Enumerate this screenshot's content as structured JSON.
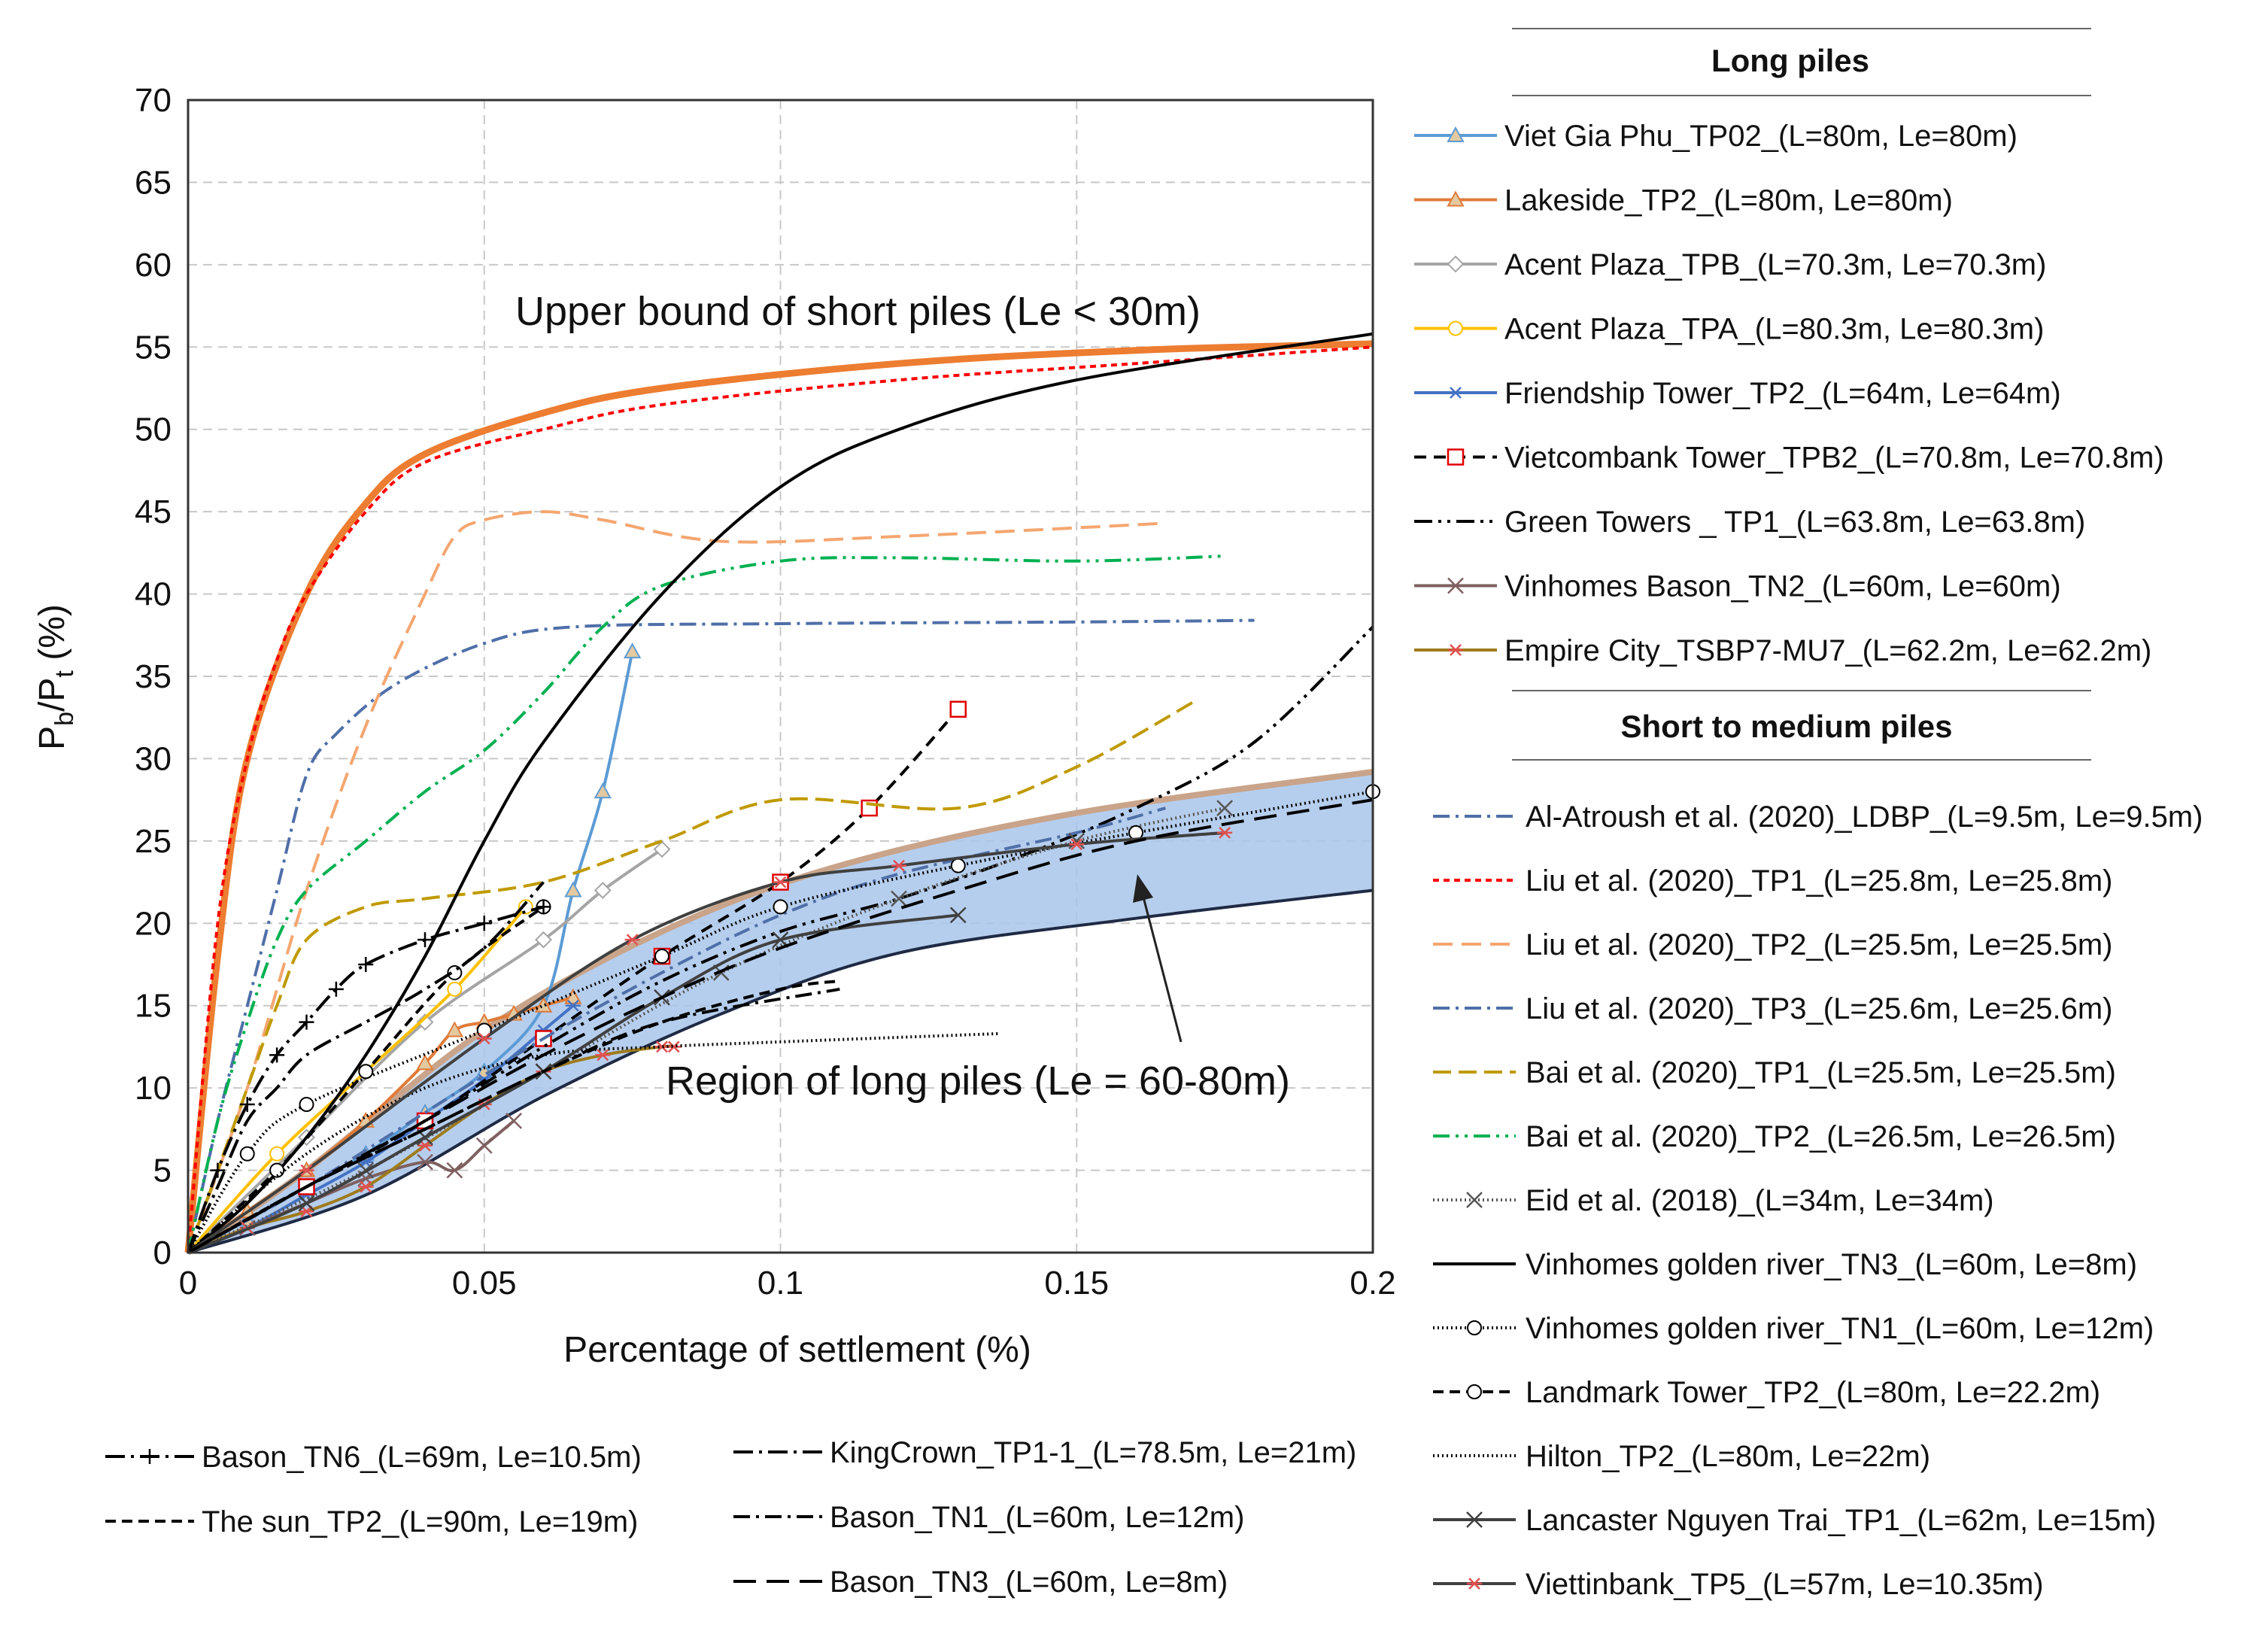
{
  "chart_data": {
    "type": "line",
    "title": "",
    "xlabel": "Percentage of settlement (%)",
    "ylabel_main": "P",
    "ylabel_sub1": "b",
    "ylabel_mid": "/P",
    "ylabel_sub2": "t",
    "ylabel_tail": " (%)",
    "xlim": [
      0,
      0.2
    ],
    "ylim": [
      0,
      70
    ],
    "xticks": [
      "0",
      "0.05",
      "0.1",
      "0.15",
      "0.2"
    ],
    "yticks": [
      "0",
      "5",
      "10",
      "15",
      "20",
      "25",
      "30",
      "35",
      "40",
      "45",
      "50",
      "55",
      "60",
      "65",
      "70"
    ],
    "grid": true,
    "annotations": [
      {
        "text": "Upper bound of short piles (Le < 30m)"
      },
      {
        "text": "Region of long piles (Le = 60-80m)"
      }
    ],
    "region": {
      "name": "Region of long piles",
      "upper": [
        [
          0,
          0
        ],
        [
          0.02,
          5
        ],
        [
          0.05,
          13.5
        ],
        [
          0.08,
          19.5
        ],
        [
          0.11,
          23.5
        ],
        [
          0.15,
          26.7
        ],
        [
          0.2,
          29.2
        ]
      ],
      "lower": [
        [
          0,
          0
        ],
        [
          0.03,
          3.5
        ],
        [
          0.06,
          9.5
        ],
        [
          0.09,
          14.5
        ],
        [
          0.12,
          18.2
        ],
        [
          0.16,
          20.3
        ],
        [
          0.2,
          22
        ]
      ]
    },
    "legend_headings": {
      "long": "Long piles",
      "short": "Short to medium piles"
    },
    "series": [
      {
        "name": "Viet Gia Phu_TP02_(L=80m, Le=80m)",
        "group": "long",
        "color": "#5b9bd5",
        "dash": "",
        "marker": "triangle",
        "x": [
          0,
          0.01,
          0.02,
          0.03,
          0.04,
          0.05,
          0.06,
          0.065,
          0.07,
          0.075
        ],
        "y": [
          0,
          2,
          4,
          6,
          8.5,
          11,
          15,
          22,
          28,
          36.5
        ]
      },
      {
        "name": "Lakeside_TP2_(L=80m, Le=80m)",
        "group": "long",
        "color": "#e07b39",
        "dash": "",
        "marker": "triangle",
        "x": [
          0,
          0.01,
          0.02,
          0.03,
          0.04,
          0.045,
          0.05,
          0.055,
          0.06,
          0.065
        ],
        "y": [
          0,
          2.5,
          5,
          8,
          11.5,
          13.5,
          14,
          14.5,
          15,
          15.5
        ]
      },
      {
        "name": "Acent Plaza_TPB_(L=70.3m, Le=70.3m)",
        "group": "long",
        "color": "#a5a5a5",
        "dash": "",
        "marker": "diamond",
        "x": [
          0,
          0.02,
          0.04,
          0.06,
          0.07,
          0.08
        ],
        "y": [
          0,
          7,
          14,
          19,
          22,
          24.5
        ]
      },
      {
        "name": "Acent Plaza_TPA_(L=80.3m, Le=80.3m)",
        "group": "long",
        "color": "#ffc000",
        "dash": "",
        "marker": "circle",
        "x": [
          0,
          0.015,
          0.03,
          0.045,
          0.057
        ],
        "y": [
          0,
          6,
          11,
          16,
          21
        ]
      },
      {
        "name": "Friendship Tower_TP2_(L=64m, Le=64m)",
        "group": "long",
        "color": "#4472c4",
        "dash": "",
        "marker": "star",
        "x": [
          0,
          0.01,
          0.02,
          0.03,
          0.04,
          0.05,
          0.06,
          0.065
        ],
        "y": [
          0,
          1.5,
          3.5,
          5.5,
          8,
          10.5,
          13.5,
          15
        ]
      },
      {
        "name": "Vietcombank Tower_TPB2_(L=70.8m, Le=70.8m)",
        "group": "long",
        "color": "#000000",
        "dash": "16,10",
        "marker": "square-red",
        "x": [
          0,
          0.02,
          0.04,
          0.06,
          0.08,
          0.1,
          0.115,
          0.13
        ],
        "y": [
          0,
          4,
          8,
          13,
          18,
          22.5,
          27,
          33
        ]
      },
      {
        "name": "Green Towers _ TP1_(L=63.8m, Le=63.8m)",
        "group": "long",
        "color": "#000000",
        "dash": "24,8,4,8,4,8",
        "marker": "",
        "x": [
          0,
          0.02,
          0.04,
          0.06,
          0.08,
          0.1,
          0.12,
          0.14,
          0.16,
          0.18,
          0.2
        ],
        "y": [
          0,
          4,
          8,
          12.5,
          16.5,
          19.5,
          21.5,
          24,
          27,
          31,
          38
        ]
      },
      {
        "name": "Vinhomes Bason_TN2_(L=60m, Le=60m)",
        "group": "long",
        "color": "#7f6060",
        "dash": "",
        "marker": "x",
        "x": [
          0,
          0.01,
          0.02,
          0.03,
          0.04,
          0.045,
          0.05,
          0.055
        ],
        "y": [
          0,
          1.5,
          3,
          4.5,
          5.5,
          5,
          6.5,
          8
        ]
      },
      {
        "name": "Empire City_TSBP7-MU7_(L=62.2m, Le=62.2m)",
        "group": "long",
        "color": "#9e7b1c",
        "dash": "",
        "marker": "asterisk",
        "x": [
          0,
          0.01,
          0.02,
          0.03,
          0.04,
          0.05,
          0.06,
          0.07,
          0.08,
          0.082
        ],
        "y": [
          0,
          1.5,
          2.5,
          4,
          6.5,
          9,
          11,
          12,
          12.5,
          12.5
        ]
      },
      {
        "name": "Al-Atroush et al. (2020)_LDBP_(L=9.5m, Le=9.5m)",
        "group": "short",
        "color": "#4f6fa8",
        "dash": "22,8,4,8",
        "marker": "",
        "x": [
          0,
          0.005,
          0.01,
          0.015,
          0.02,
          0.025,
          0.035,
          0.05,
          0.065,
          0.1,
          0.15,
          0.18
        ],
        "y": [
          0,
          8,
          15,
          22,
          29,
          31.5,
          34.5,
          37,
          38,
          38.2,
          38.3,
          38.4
        ]
      },
      {
        "name": "Liu et al. (2020)_TP1_(L=25.8m, Le=25.8m)",
        "group": "short",
        "color": "#ff0000",
        "dash": "8,6",
        "marker": "",
        "x": [
          0,
          0.005,
          0.01,
          0.015,
          0.02,
          0.03,
          0.04,
          0.06,
          0.08,
          0.12,
          0.16,
          0.2
        ],
        "y": [
          0,
          20,
          30,
          36,
          40,
          45,
          48,
          50,
          51.5,
          53,
          54,
          55
        ]
      },
      {
        "name": "Liu et al. (2020)_TP2_(L=25.5m, Le=25.5m)",
        "group": "short",
        "color": "#f4a670",
        "dash": "26,12",
        "marker": "",
        "x": [
          0,
          0.01,
          0.02,
          0.03,
          0.04,
          0.045,
          0.05,
          0.06,
          0.07,
          0.09,
          0.12,
          0.165
        ],
        "y": [
          0,
          10,
          22,
          32,
          40,
          43.5,
          44.5,
          45,
          44.5,
          43.2,
          43.5,
          44.3
        ]
      },
      {
        "name": "Liu et al. (2020)_TP3_(L=25.6m, Le=25.6m)",
        "group": "short",
        "color": "#4f6fa8",
        "dash": "22,8,4,8",
        "marker": "",
        "x": [
          0,
          0.02,
          0.04,
          0.06,
          0.08,
          0.1,
          0.12,
          0.15,
          0.165
        ],
        "y": [
          0,
          4,
          8.5,
          13,
          17,
          20.5,
          23,
          25.5,
          27
        ]
      },
      {
        "name": "Bai et al. (2020)_TP1_(L=25.5m, Le=25.5m)",
        "group": "short",
        "color": "#c09a00",
        "dash": "24,10",
        "marker": "",
        "x": [
          0,
          0.005,
          0.01,
          0.015,
          0.02,
          0.03,
          0.04,
          0.06,
          0.08,
          0.1,
          0.13,
          0.15,
          0.17
        ],
        "y": [
          0,
          5,
          10,
          15,
          19,
          21,
          21.5,
          22.5,
          25,
          27.5,
          27,
          29.5,
          33.5
        ]
      },
      {
        "name": "Bai et al. (2020)_TP2_(L=26.5m, Le=26.5m)",
        "group": "short",
        "color": "#00b050",
        "dash": "22,8,4,8,4,8",
        "marker": "",
        "x": [
          0,
          0.005,
          0.01,
          0.015,
          0.02,
          0.03,
          0.04,
          0.05,
          0.06,
          0.07,
          0.08,
          0.1,
          0.12,
          0.15,
          0.175
        ],
        "y": [
          0,
          8,
          14,
          19,
          22,
          25,
          28,
          30.5,
          34,
          38,
          40.5,
          42,
          42.2,
          42,
          42.3
        ]
      },
      {
        "name": "Eid et al. (2018)_(L=34m, Le=34m)",
        "group": "short",
        "color": "#555555",
        "dash": "2,4",
        "marker": "x",
        "x": [
          0,
          0.03,
          0.06,
          0.09,
          0.12,
          0.15,
          0.175
        ],
        "y": [
          0,
          5,
          11,
          17,
          21.5,
          25,
          27
        ]
      },
      {
        "name": "Vinhomes golden river_TN3_(L=60m, Le=8m)",
        "group": "short",
        "color": "#000000",
        "dash": "",
        "marker": "",
        "x": [
          0,
          0.01,
          0.02,
          0.03,
          0.04,
          0.05,
          0.06,
          0.08,
          0.1,
          0.12,
          0.15,
          0.2
        ],
        "y": [
          0,
          3,
          7,
          12,
          18,
          25,
          31,
          40,
          46.5,
          50,
          53,
          55.8
        ]
      },
      {
        "name": "Vinhomes golden river_TN1_(L=60m, Le=12m)",
        "group": "short",
        "color": "#000000",
        "dash": "2,4",
        "marker": "circle",
        "x": [
          0,
          0.01,
          0.02,
          0.05,
          0.08,
          0.1,
          0.13,
          0.16,
          0.2
        ],
        "y": [
          0,
          6,
          9,
          13.5,
          18,
          21,
          23.5,
          25.5,
          28
        ]
      },
      {
        "name": "Landmark Tower_TP2_(L=80m, Le=22.2m)",
        "group": "short",
        "color": "#000000",
        "dash": "14,8",
        "marker": "circle",
        "x": [
          0,
          0.015,
          0.03,
          0.045,
          0.06
        ],
        "y": [
          0,
          5,
          11,
          17,
          21
        ]
      },
      {
        "name": "Hilton_TP2_(L=80m, Le=22m)",
        "group": "short",
        "color": "#000000",
        "dash": "2,4",
        "marker": "",
        "x": [
          0,
          0.02,
          0.04,
          0.06,
          0.08,
          0.1,
          0.137
        ],
        "y": [
          0,
          6,
          10,
          12,
          12.5,
          12.8,
          13.3
        ]
      },
      {
        "name": "Lancaster Nguyen Trai_TP1_(L=62m, Le=15m)",
        "group": "short",
        "color": "#404040",
        "dash": "",
        "marker": "x",
        "x": [
          0,
          0.02,
          0.04,
          0.06,
          0.08,
          0.1,
          0.13
        ],
        "y": [
          0,
          3,
          7,
          11,
          15.5,
          19,
          20.5
        ]
      },
      {
        "name": "Viettinbank_TP5_(L=57m, Le=10.35m)",
        "group": "short",
        "color": "#404040",
        "dash": "",
        "marker": "asterisk",
        "x": [
          0,
          0.02,
          0.05,
          0.075,
          0.1,
          0.12,
          0.15,
          0.175
        ],
        "y": [
          0,
          5,
          13,
          19,
          22.5,
          23.5,
          24.8,
          25.5
        ]
      },
      {
        "name": "Bason_TN6_(L=69m, Le=10.5m)",
        "group": "bottom",
        "color": "#000000",
        "dash": "26,8,4,8",
        "marker": "plus",
        "x": [
          0,
          0.005,
          0.01,
          0.015,
          0.02,
          0.025,
          0.03,
          0.04,
          0.05,
          0.06
        ],
        "y": [
          0,
          5,
          9,
          12,
          14,
          16,
          17.5,
          19,
          20,
          21
        ]
      },
      {
        "name": "The sun_TP2_(L=90m, Le=19m)",
        "group": "bottom",
        "color": "#000000",
        "dash": "14,8",
        "marker": "",
        "x": [
          0,
          0.02,
          0.04,
          0.06,
          0.08,
          0.1,
          0.11
        ],
        "y": [
          0,
          4,
          7.5,
          11,
          14,
          16,
          16.5
        ]
      },
      {
        "name": "KingCrown_TP1-1_(L=78.5m, Le=21m)",
        "group": "bottom",
        "color": "#000000",
        "dash": "26,8,4,8",
        "marker": "",
        "x": [
          0,
          0.005,
          0.01,
          0.015,
          0.02,
          0.03,
          0.04,
          0.05,
          0.06
        ],
        "y": [
          0,
          4,
          8,
          10,
          12,
          14,
          16,
          18.5,
          22.5
        ]
      },
      {
        "name": "Bason_TN1_(L=60m, Le=12m)",
        "group": "bottom",
        "color": "#000000",
        "dash": "22,8,4,8",
        "marker": "",
        "x": [
          0,
          0.02,
          0.04,
          0.06,
          0.08,
          0.11
        ],
        "y": [
          0,
          4,
          7.5,
          11,
          14,
          16
        ]
      },
      {
        "name": "Bason_TN3_(L=60m, Le=8m)",
        "group": "bottom",
        "color": "#000000",
        "dash": "30,14",
        "marker": "",
        "x": [
          0,
          0.02,
          0.04,
          0.06,
          0.08,
          0.1,
          0.13,
          0.16,
          0.2
        ],
        "y": [
          0,
          4,
          8,
          12,
          15.5,
          18.5,
          22,
          25,
          27.5
        ]
      }
    ]
  }
}
